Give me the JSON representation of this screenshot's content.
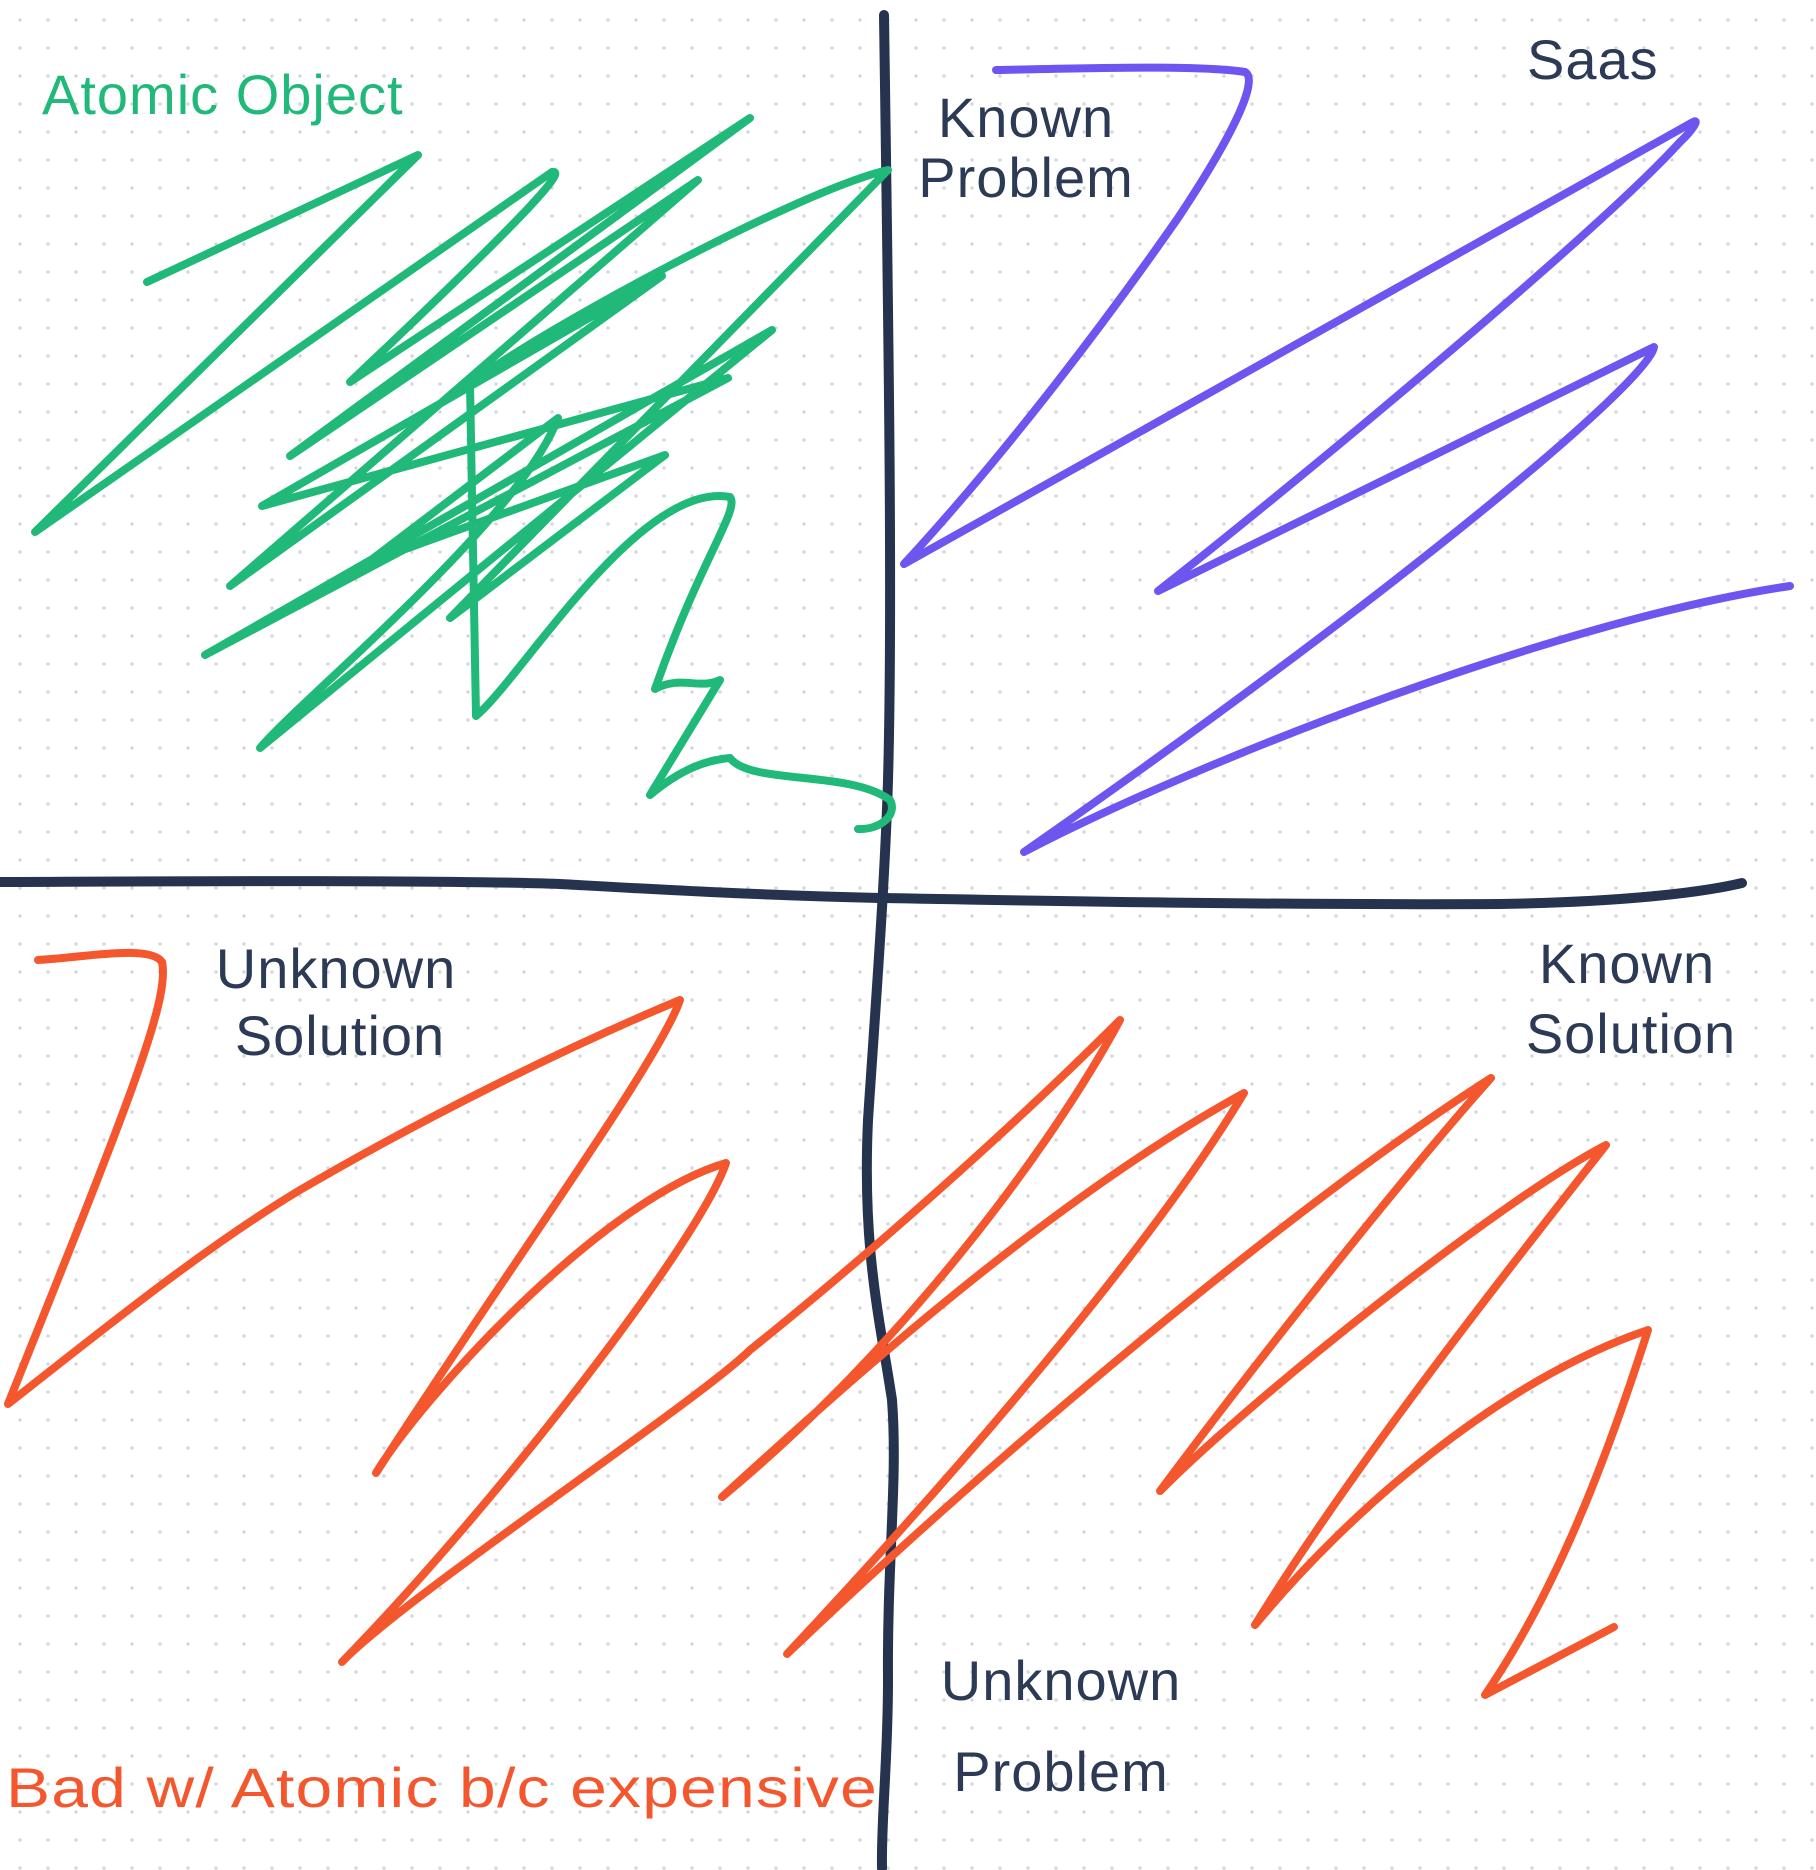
{
  "colors": {
    "axis": "#25334f",
    "text": "#2c3a55",
    "green": "#20b97a",
    "purple": "#6d55f0",
    "red": "#f4562e",
    "grid_dot": "#d4d6da",
    "background": "#ffffff"
  },
  "labels": {
    "atomic_object": "Atomic Object",
    "saas": "Saas",
    "top_axis_line1": "Known",
    "top_axis_line2": "Problem",
    "left_axis_line1": "Unknown",
    "left_axis_line2": "Solution",
    "right_axis_line1": "Known",
    "right_axis_line2": "Solution",
    "bottom_axis_line1": "Unknown",
    "bottom_axis_line2": "Problem",
    "bad_note": "Bad w/ Atomic b/c expensive"
  }
}
